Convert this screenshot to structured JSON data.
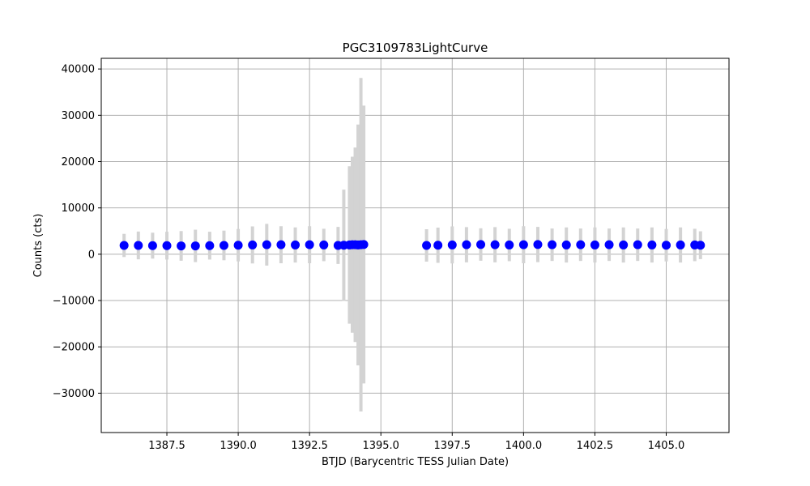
{
  "chart_data": {
    "type": "scatter",
    "title": "PGC3109783LightCurve",
    "xlabel": "BTJD (Barycentric TESS Julian Date)",
    "ylabel": "Counts (cts)",
    "xlim": [
      1385.2,
      1407.2
    ],
    "ylim": [
      -38500,
      42300
    ],
    "x_ticks": [
      1385.0,
      1387.5,
      1390.0,
      1392.5,
      1395.0,
      1397.5,
      1400.0,
      1402.5,
      1405.0
    ],
    "x_tick_labels": [
      "1385.0",
      "1387.5",
      "1390.0",
      "1392.5",
      "1395.0",
      "1397.5",
      "1400.0",
      "1402.5",
      "1405.0"
    ],
    "y_ticks": [
      -30000,
      -20000,
      -10000,
      0,
      10000,
      20000,
      30000,
      40000
    ],
    "y_tick_labels": [
      "−30000",
      "−20000",
      "−10000",
      "0",
      "10000",
      "20000",
      "30000",
      "40000"
    ],
    "grid": true,
    "marker_color": "#0000ff",
    "errorbar_color": "#d3d3d3",
    "series": [
      {
        "x": [
          1386.0,
          1386.5,
          1387.0,
          1387.5,
          1388.0,
          1388.5,
          1389.0,
          1389.5,
          1390.0,
          1390.5,
          1391.0,
          1391.5,
          1392.0,
          1392.5,
          1393.0,
          1393.5,
          1393.7,
          1393.9,
          1394.0,
          1394.1,
          1394.2,
          1394.3,
          1394.4,
          1396.6,
          1397.0,
          1397.5,
          1398.0,
          1398.5,
          1399.0,
          1399.5,
          1400.0,
          1400.5,
          1401.0,
          1401.5,
          1402.0,
          1402.5,
          1403.0,
          1403.5,
          1404.0,
          1404.5,
          1405.0,
          1405.5,
          1406.0,
          1406.2
        ],
        "y": [
          1900,
          1900,
          1850,
          1850,
          1800,
          1800,
          1850,
          1900,
          1950,
          2000,
          2050,
          2050,
          2000,
          2050,
          2000,
          1900,
          1950,
          2000,
          2050,
          2050,
          2000,
          2050,
          2100,
          1900,
          1950,
          2000,
          2050,
          2100,
          2050,
          2000,
          2050,
          2100,
          2050,
          2000,
          2050,
          2000,
          2050,
          2000,
          2050,
          2000,
          1950,
          2000,
          2000,
          1950
        ],
        "yerr": [
          2500,
          3000,
          2800,
          3000,
          3200,
          3500,
          3000,
          3200,
          3500,
          4000,
          4500,
          4000,
          3800,
          4000,
          3500,
          4000,
          12000,
          17000,
          19000,
          21000,
          26000,
          36000,
          30000,
          3500,
          3800,
          4000,
          3800,
          3500,
          3800,
          3500,
          4000,
          3800,
          3500,
          3800,
          3500,
          3800,
          3500,
          3800,
          3500,
          3800,
          3500,
          3800,
          3500,
          3000
        ]
      }
    ]
  }
}
